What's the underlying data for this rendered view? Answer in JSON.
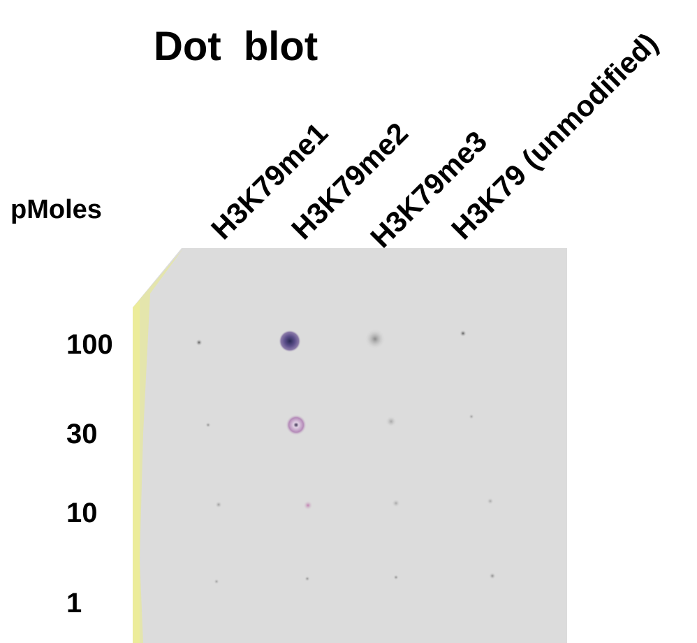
{
  "title": "Dot  blot",
  "row_header": "pMoles",
  "columns": [
    "H3K79me1",
    "H3K79me2",
    "H3K79me3",
    "H3K79 (unmodified)"
  ],
  "rows": [
    100,
    30,
    10,
    1
  ]
}
